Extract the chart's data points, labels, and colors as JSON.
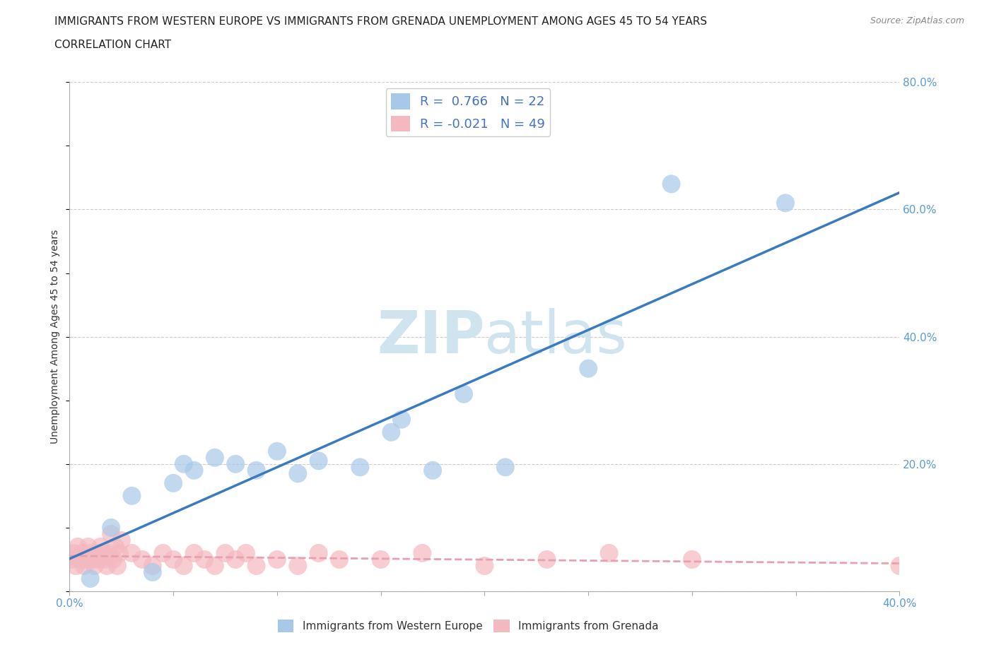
{
  "title_line1": "IMMIGRANTS FROM WESTERN EUROPE VS IMMIGRANTS FROM GRENADA UNEMPLOYMENT AMONG AGES 45 TO 54 YEARS",
  "title_line2": "CORRELATION CHART",
  "source_text": "Source: ZipAtlas.com",
  "ylabel": "Unemployment Among Ages 45 to 54 years",
  "xlim": [
    0.0,
    0.4
  ],
  "ylim": [
    0.0,
    0.8
  ],
  "xticks": [
    0.0,
    0.05,
    0.1,
    0.15,
    0.2,
    0.25,
    0.3,
    0.35,
    0.4
  ],
  "yticks": [
    0.0,
    0.2,
    0.4,
    0.6,
    0.8
  ],
  "blue_R": 0.766,
  "blue_N": 22,
  "pink_R": -0.021,
  "pink_N": 49,
  "blue_color": "#a8c8e8",
  "pink_color": "#f4b8c0",
  "blue_line_color": "#3a7abf",
  "pink_line_color": "#e8a0b0",
  "watermark_color": "#d0e4f0",
  "blue_scatter_x": [
    0.01,
    0.02,
    0.03,
    0.04,
    0.05,
    0.055,
    0.06,
    0.07,
    0.08,
    0.09,
    0.1,
    0.11,
    0.12,
    0.14,
    0.155,
    0.16,
    0.175,
    0.19,
    0.21,
    0.25,
    0.29,
    0.345
  ],
  "blue_scatter_y": [
    0.02,
    0.1,
    0.15,
    0.03,
    0.17,
    0.2,
    0.19,
    0.21,
    0.2,
    0.19,
    0.22,
    0.185,
    0.205,
    0.195,
    0.25,
    0.27,
    0.19,
    0.31,
    0.195,
    0.35,
    0.64,
    0.61
  ],
  "pink_scatter_x": [
    0.001,
    0.002,
    0.003,
    0.004,
    0.005,
    0.006,
    0.007,
    0.008,
    0.009,
    0.01,
    0.011,
    0.012,
    0.013,
    0.014,
    0.015,
    0.016,
    0.017,
    0.018,
    0.019,
    0.02,
    0.021,
    0.022,
    0.023,
    0.024,
    0.025,
    0.03,
    0.035,
    0.04,
    0.045,
    0.05,
    0.055,
    0.06,
    0.065,
    0.07,
    0.075,
    0.08,
    0.085,
    0.09,
    0.1,
    0.11,
    0.12,
    0.13,
    0.15,
    0.17,
    0.2,
    0.23,
    0.26,
    0.3,
    0.4
  ],
  "pink_scatter_y": [
    0.05,
    0.06,
    0.04,
    0.07,
    0.05,
    0.06,
    0.04,
    0.05,
    0.07,
    0.06,
    0.05,
    0.04,
    0.06,
    0.05,
    0.07,
    0.06,
    0.05,
    0.04,
    0.06,
    0.09,
    0.05,
    0.07,
    0.04,
    0.06,
    0.08,
    0.06,
    0.05,
    0.04,
    0.06,
    0.05,
    0.04,
    0.06,
    0.05,
    0.04,
    0.06,
    0.05,
    0.06,
    0.04,
    0.05,
    0.04,
    0.06,
    0.05,
    0.05,
    0.06,
    0.04,
    0.05,
    0.06,
    0.05,
    0.04
  ],
  "legend_label_blue": "Immigrants from Western Europe",
  "legend_label_pink": "Immigrants from Grenada",
  "title_fontsize": 11,
  "subtitle_fontsize": 11,
  "tick_fontsize": 11,
  "legend_fontsize": 11,
  "background_color": "#ffffff"
}
